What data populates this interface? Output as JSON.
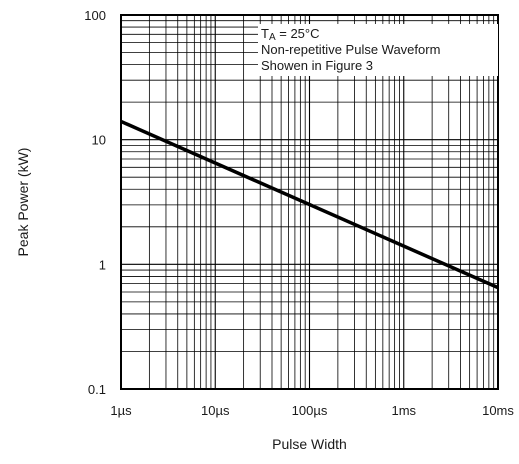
{
  "chart_data": {
    "type": "line",
    "xlabel": "Pulse Width",
    "ylabel": "Peak Power (kW)",
    "x_scale": "log",
    "y_scale": "log",
    "xlim": [
      "1µs",
      "10ms"
    ],
    "ylim": [
      0.1,
      100
    ],
    "x_ticks": [
      "1µs",
      "10µs",
      "100µs",
      "1ms",
      "10ms"
    ],
    "y_ticks": [
      "0.1",
      "1",
      "10",
      "100"
    ],
    "grid": true,
    "annotations": {
      "line1_main": "T",
      "line1_sub": "A",
      "line1_rest": " = 25°C",
      "line2": "Non-repetitive Pulse Waveform",
      "line3": "Showen in Figure 3"
    },
    "series": [
      {
        "x": [
          "1µs",
          "10ms"
        ],
        "y": [
          14,
          0.65
        ],
        "color": "#000000"
      }
    ]
  }
}
